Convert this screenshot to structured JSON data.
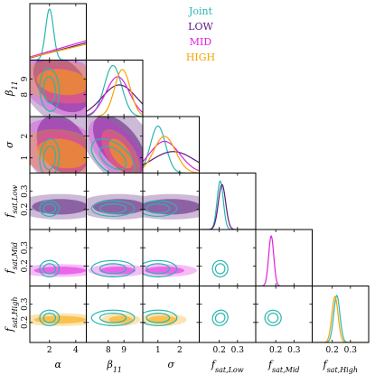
{
  "chart_data": {
    "type": "corner",
    "parameters": [
      {
        "key": "alpha",
        "label": "α",
        "sub": "",
        "range": [
          0.5,
          4.8
        ],
        "ticks": [
          2,
          4
        ]
      },
      {
        "key": "beta11",
        "label": "β",
        "sub": "11",
        "range": [
          6.6,
          10.2
        ],
        "ticks": [
          8,
          9
        ]
      },
      {
        "key": "sigma",
        "label": "σ",
        "sub": "",
        "range": [
          0.3,
          2.9
        ],
        "ticks": [
          1,
          2
        ]
      },
      {
        "key": "fsat_low",
        "label": "f",
        "sub": "sat,Low",
        "range": [
          0.09,
          0.4
        ],
        "ticks": [
          0.2,
          0.3
        ]
      },
      {
        "key": "fsat_mid",
        "label": "f",
        "sub": "sat,Mid",
        "range": [
          0.09,
          0.4
        ],
        "ticks": [
          0.2,
          0.3
        ]
      },
      {
        "key": "fsat_high",
        "label": "f",
        "sub": "sat,High",
        "range": [
          0.09,
          0.4
        ],
        "ticks": [
          0.2,
          0.3
        ]
      }
    ],
    "legend": {
      "placement": "top-right",
      "entries": [
        {
          "name": "Joint",
          "color": "#2ab5b0"
        },
        {
          "name": "LOW",
          "color": "#5a1a7a"
        },
        {
          "name": "MID",
          "color": "#e020e0"
        },
        {
          "name": "HIGH",
          "color": "#f5a500"
        }
      ]
    },
    "marginals": [
      {
        "param": "alpha",
        "series": [
          {
            "name": "Joint",
            "type": "gaussian",
            "mean": 2.0,
            "sd": 0.3,
            "peak": 1.0
          },
          {
            "name": "LOW",
            "type": "linear",
            "start": 0.04,
            "end": 0.34
          },
          {
            "name": "MID",
            "type": "linear",
            "start": 0.06,
            "end": 0.38
          },
          {
            "name": "HIGH",
            "type": "linear",
            "start": 0.05,
            "end": 0.31
          }
        ]
      },
      {
        "param": "beta11",
        "series": [
          {
            "name": "Joint",
            "type": "gaussian",
            "mean": 8.3,
            "sd": 0.55,
            "peak": 1.0
          },
          {
            "name": "LOW",
            "type": "gaussian",
            "mean": 8.7,
            "sd": 1.1,
            "peak": 0.62
          },
          {
            "name": "MID",
            "type": "gaussian",
            "mean": 8.6,
            "sd": 0.75,
            "peak": 0.78
          },
          {
            "name": "HIGH",
            "type": "gaussian",
            "mean": 8.9,
            "sd": 0.5,
            "peak": 0.92
          }
        ]
      },
      {
        "param": "sigma",
        "series": [
          {
            "name": "Joint",
            "type": "gaussian",
            "mean": 1.0,
            "sd": 0.35,
            "peak": 0.92
          },
          {
            "name": "LOW",
            "type": "gaussian",
            "mean": 1.7,
            "sd": 1.0,
            "peak": 0.42
          },
          {
            "name": "MID",
            "type": "gaussian",
            "mean": 1.3,
            "sd": 0.7,
            "peak": 0.62
          },
          {
            "name": "HIGH",
            "type": "gaussian",
            "mean": 1.3,
            "sd": 0.5,
            "peak": 0.72
          }
        ]
      },
      {
        "param": "fsat_low",
        "series": [
          {
            "name": "Joint",
            "type": "gaussian",
            "mean": 0.205,
            "sd": 0.017,
            "peak": 0.95
          },
          {
            "name": "LOW",
            "type": "gaussian",
            "mean": 0.215,
            "sd": 0.02,
            "peak": 0.88
          }
        ]
      },
      {
        "param": "fsat_mid",
        "series": [
          {
            "name": "MID",
            "type": "gaussian",
            "mean": 0.175,
            "sd": 0.014,
            "peak": 0.98
          }
        ]
      },
      {
        "param": "fsat_high",
        "series": [
          {
            "name": "Joint",
            "type": "gaussian",
            "mean": 0.225,
            "sd": 0.017,
            "peak": 0.92
          },
          {
            "name": "HIGH",
            "type": "gaussian",
            "mean": 0.215,
            "sd": 0.017,
            "peak": 0.9
          }
        ]
      }
    ],
    "contours": [
      {
        "x": "alpha",
        "y": "beta11",
        "series": [
          {
            "name": "LOW",
            "mean": [
              2.9,
              8.7
            ],
            "sd": [
              1.4,
              1.2
            ],
            "rho": -0.4
          },
          {
            "name": "MID",
            "mean": [
              3.0,
              8.6
            ],
            "sd": [
              1.3,
              0.8
            ],
            "rho": -0.3
          },
          {
            "name": "HIGH",
            "mean": [
              3.0,
              8.8
            ],
            "sd": [
              1.3,
              0.55
            ],
            "rho": -0.2
          },
          {
            "name": "Joint",
            "mean": [
              2.0,
              8.3
            ],
            "sd": [
              0.3,
              0.55
            ],
            "rho": -0.1
          }
        ]
      },
      {
        "x": "alpha",
        "y": "sigma",
        "series": [
          {
            "name": "LOW",
            "mean": [
              3.0,
              1.6
            ],
            "sd": [
              1.3,
              0.9
            ],
            "rho": -0.3
          },
          {
            "name": "MID",
            "mean": [
              3.0,
              1.3
            ],
            "sd": [
              1.3,
              0.6
            ],
            "rho": -0.3
          },
          {
            "name": "HIGH",
            "mean": [
              3.0,
              1.2
            ],
            "sd": [
              1.3,
              0.45
            ],
            "rho": -0.2
          },
          {
            "name": "Joint",
            "mean": [
              2.0,
              1.0
            ],
            "sd": [
              0.3,
              0.35
            ],
            "rho": 0.1
          }
        ]
      },
      {
        "x": "alpha",
        "y": "fsat_low",
        "series": [
          {
            "name": "LOW",
            "mean": [
              2.8,
              0.215
            ],
            "sd": [
              1.4,
              0.028
            ],
            "rho": 0.0
          },
          {
            "name": "Joint",
            "mean": [
              2.0,
              0.205
            ],
            "sd": [
              0.3,
              0.017
            ],
            "rho": 0.0
          }
        ]
      },
      {
        "x": "alpha",
        "y": "fsat_mid",
        "series": [
          {
            "name": "MID",
            "mean": [
              2.8,
              0.175
            ],
            "sd": [
              1.3,
              0.014
            ],
            "rho": 0.0
          },
          {
            "name": "Joint",
            "mean": [
              2.0,
              0.185
            ],
            "sd": [
              0.3,
              0.018
            ],
            "rho": 0.0
          }
        ]
      },
      {
        "x": "alpha",
        "y": "fsat_high",
        "series": [
          {
            "name": "HIGH",
            "mean": [
              2.8,
              0.215
            ],
            "sd": [
              1.3,
              0.014
            ],
            "rho": 0.0
          },
          {
            "name": "Joint",
            "mean": [
              2.0,
              0.225
            ],
            "sd": [
              0.3,
              0.017
            ],
            "rho": 0.0
          }
        ]
      },
      {
        "x": "beta11",
        "y": "sigma",
        "series": [
          {
            "name": "LOW",
            "mean": [
              8.7,
              1.6
            ],
            "sd": [
              1.1,
              0.9
            ],
            "rho": -0.55
          },
          {
            "name": "MID",
            "mean": [
              8.6,
              1.3
            ],
            "sd": [
              0.75,
              0.6
            ],
            "rho": -0.6
          },
          {
            "name": "HIGH",
            "mean": [
              8.8,
              1.2
            ],
            "sd": [
              0.5,
              0.45
            ],
            "rho": -0.6
          },
          {
            "name": "Joint",
            "mean": [
              8.3,
              1.0
            ],
            "sd": [
              0.55,
              0.35
            ],
            "rho": -0.5
          }
        ]
      },
      {
        "x": "beta11",
        "y": "fsat_low",
        "series": [
          {
            "name": "LOW",
            "mean": [
              8.7,
              0.215
            ],
            "sd": [
              1.1,
              0.028
            ],
            "rho": 0.0
          },
          {
            "name": "Joint",
            "mean": [
              8.3,
              0.205
            ],
            "sd": [
              0.55,
              0.017
            ],
            "rho": 0.0
          }
        ]
      },
      {
        "x": "beta11",
        "y": "fsat_mid",
        "series": [
          {
            "name": "MID",
            "mean": [
              8.6,
              0.175
            ],
            "sd": [
              0.75,
              0.014
            ],
            "rho": 0.0
          },
          {
            "name": "Joint",
            "mean": [
              8.3,
              0.185
            ],
            "sd": [
              0.55,
              0.018
            ],
            "rho": 0.0
          }
        ]
      },
      {
        "x": "beta11",
        "y": "fsat_high",
        "series": [
          {
            "name": "HIGH",
            "mean": [
              8.8,
              0.215
            ],
            "sd": [
              0.5,
              0.014
            ],
            "rho": 0.0
          },
          {
            "name": "Joint",
            "mean": [
              8.3,
              0.225
            ],
            "sd": [
              0.55,
              0.017
            ],
            "rho": 0.0
          }
        ]
      },
      {
        "x": "sigma",
        "y": "fsat_low",
        "series": [
          {
            "name": "LOW",
            "mean": [
              1.6,
              0.215
            ],
            "sd": [
              0.9,
              0.028
            ],
            "rho": 0.0
          },
          {
            "name": "Joint",
            "mean": [
              1.0,
              0.205
            ],
            "sd": [
              0.35,
              0.017
            ],
            "rho": 0.0
          }
        ]
      },
      {
        "x": "sigma",
        "y": "fsat_mid",
        "series": [
          {
            "name": "MID",
            "mean": [
              1.3,
              0.175
            ],
            "sd": [
              0.6,
              0.014
            ],
            "rho": 0.0
          },
          {
            "name": "Joint",
            "mean": [
              1.0,
              0.185
            ],
            "sd": [
              0.35,
              0.018
            ],
            "rho": 0.0
          }
        ]
      },
      {
        "x": "sigma",
        "y": "fsat_high",
        "series": [
          {
            "name": "HIGH",
            "mean": [
              1.2,
              0.215
            ],
            "sd": [
              0.45,
              0.014
            ],
            "rho": 0.0
          },
          {
            "name": "Joint",
            "mean": [
              1.0,
              0.225
            ],
            "sd": [
              0.35,
              0.017
            ],
            "rho": 0.0
          }
        ]
      },
      {
        "x": "fsat_low",
        "y": "fsat_mid",
        "series": [
          {
            "name": "Joint",
            "mean": [
              0.205,
              0.185
            ],
            "sd": [
              0.017,
              0.018
            ],
            "rho": 0.0
          }
        ]
      },
      {
        "x": "fsat_low",
        "y": "fsat_high",
        "series": [
          {
            "name": "Joint",
            "mean": [
              0.205,
              0.225
            ],
            "sd": [
              0.017,
              0.017
            ],
            "rho": 0.1
          }
        ]
      },
      {
        "x": "fsat_mid",
        "y": "fsat_high",
        "series": [
          {
            "name": "Joint",
            "mean": [
              0.185,
              0.225
            ],
            "sd": [
              0.018,
              0.017
            ],
            "rho": 0.0
          }
        ]
      }
    ]
  }
}
